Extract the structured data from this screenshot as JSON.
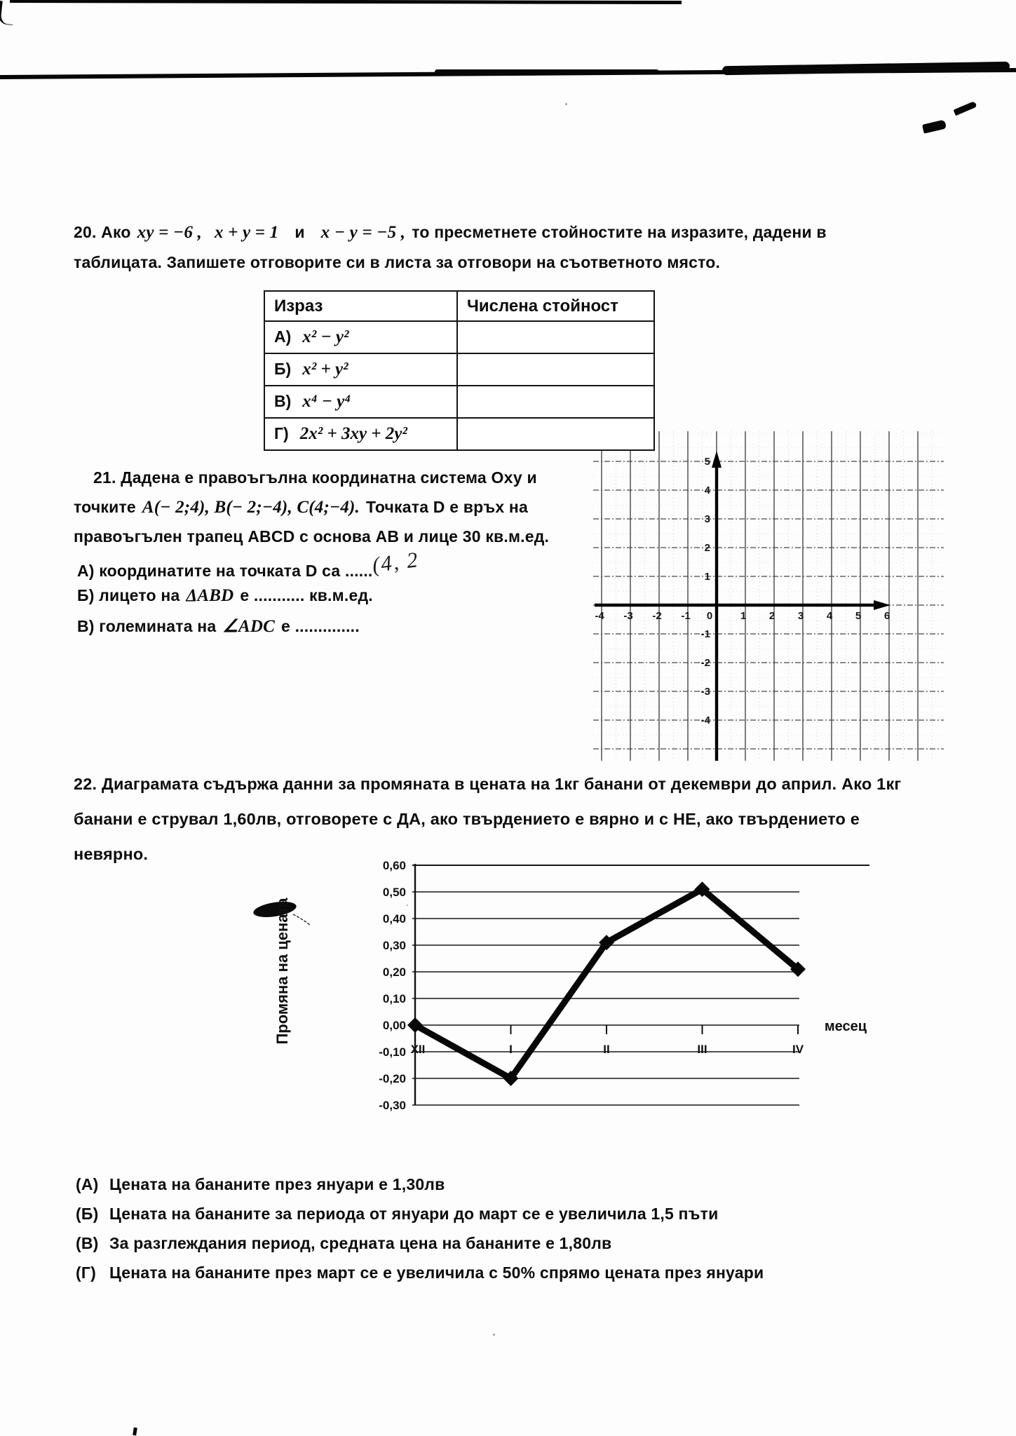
{
  "q20": {
    "line1_t1": "20. Ако",
    "line1_m1": "xy = −6 ,",
    "line1_m2": "x + y = 1",
    "line1_t2": "и",
    "line1_m3": "x − y = −5 ,",
    "line1_t3": "то пресметнете стойностите на изразите, дадени в",
    "line2": "таблицата. Запишете отговорите си в листа за отговори на съответното място."
  },
  "table": {
    "headers": [
      "Израз",
      "Числена стойност"
    ],
    "rows": [
      {
        "label": "А)",
        "expr": "x² − y²",
        "value": ""
      },
      {
        "label": "Б)",
        "expr": "x² + y²",
        "value": ""
      },
      {
        "label": "В)",
        "expr": "x⁴ − y⁴",
        "value": ""
      },
      {
        "label": "Г)",
        "expr": "2x² + 3xy + 2y²",
        "value": ""
      }
    ]
  },
  "q21": {
    "line1": "21. Дадена е правоъгълна координатна система Оху и",
    "line2_t1": "точките",
    "line2_m1": "A(− 2;4),  B(− 2;−4),  C(4;−4).",
    "line2_t2": "Точката D е връх на",
    "line3": "правоъгълен трапец ABCD с основа AB и лице 30 кв.м.ед.",
    "item_a_t": "А) координатите на точката D са",
    "item_a_dots": "......",
    "item_a_handwriting": "(4, 2",
    "item_b_t1": "Б) лицето на",
    "item_b_m": "ΔABD",
    "item_b_t2": "е ........... кв.м.ед.",
    "item_c_t1": "В) големината на",
    "item_c_m": "∠ADC",
    "item_c_t2": "е .............."
  },
  "q22": {
    "line1": "22. Диаграмата съдържа данни за промяната в цената на 1кг банани от декември до април. Ако 1кг",
    "line2": "банани е струвал 1,60лв, отговорете с ДА, ако твърдението е вярно и с НЕ, ако твърдението е",
    "line3": "невярно.",
    "options": [
      {
        "label": "(А)",
        "text": "Цената на бананите през януари е 1,30лв"
      },
      {
        "label": "(Б)",
        "text": "Цената на бананите за периода от януари до март се е увеличила 1,5 пъти"
      },
      {
        "label": "(В)",
        "text": "За разглеждания период, средната цена на  бананите е 1,80лв"
      },
      {
        "label": "(Г)",
        "text": "Цената на бананите през март се е увеличила с 50% спрямо цената  през януари"
      }
    ]
  },
  "chart_data": [
    {
      "type": "coordinate-grid",
      "title": "",
      "x_tick_labels": [
        "-4",
        "-3",
        "-2",
        "-1",
        "0",
        "1",
        "2",
        "3",
        "4",
        "5",
        "6"
      ],
      "y_tick_labels": [
        "5",
        "4",
        "3",
        "2",
        "1",
        "-1",
        "-2",
        "-3",
        "-4"
      ],
      "x_range": [
        -4,
        6
      ],
      "y_range": [
        -4,
        5
      ],
      "grid": "on"
    },
    {
      "type": "line",
      "categories": [
        "XII",
        "I",
        "II",
        "III",
        "IV"
      ],
      "values": [
        0.0,
        -0.2,
        0.31,
        0.51,
        0.21
      ],
      "y_tick_labels": [
        "0,60",
        "0,50",
        "0,40",
        "0,30",
        "0,20",
        "0,10",
        "0,00",
        "-0,10",
        "-0,20",
        "-0,30"
      ],
      "ylim": [
        -0.3,
        0.6
      ],
      "ylabel": "Промяна на цената",
      "xlabel": "месец",
      "grid": "horizontal",
      "legend": "none",
      "marker": "diamond"
    }
  ]
}
